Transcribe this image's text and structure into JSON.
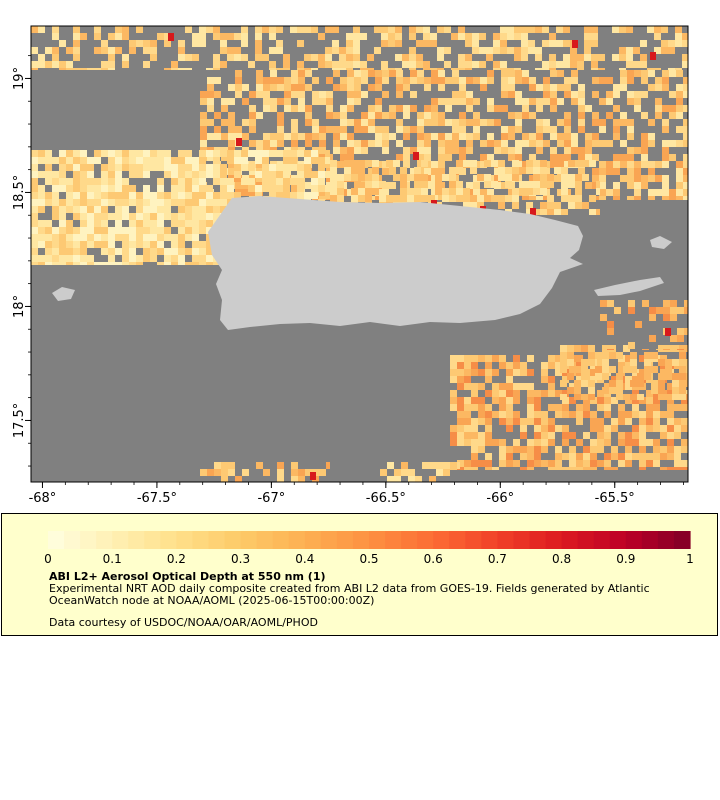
{
  "map": {
    "land_color": "#cccccc",
    "nodata_color": "#808080",
    "extent": {
      "lon": [
        -68.05,
        -65.18
      ],
      "lat": [
        17.23,
        19.23
      ]
    },
    "lon_ticks": [
      {
        "value": -68,
        "label": "-68°"
      },
      {
        "value": -67.5,
        "label": "-67.5°"
      },
      {
        "value": -67,
        "label": "-67°"
      },
      {
        "value": -66.5,
        "label": "-66.5°"
      },
      {
        "value": -66,
        "label": "-66°"
      },
      {
        "value": -65.5,
        "label": "-65.5°"
      }
    ],
    "lat_ticks": [
      {
        "value": 19,
        "label": "19°"
      },
      {
        "value": 18.5,
        "label": "18.5°"
      },
      {
        "value": 18,
        "label": "18°"
      },
      {
        "value": 17.5,
        "label": "17.5°"
      }
    ]
  },
  "legend": {
    "ticks": [
      "0",
      "0.1",
      "0.2",
      "0.3",
      "0.4",
      "0.5",
      "0.6",
      "0.7",
      "0.8",
      "0.9",
      "1"
    ],
    "colors": [
      "#ffffe0",
      "#fff0b4",
      "#ffe08a",
      "#fdca68",
      "#fdb052",
      "#fd9142",
      "#fc6c34",
      "#f04028",
      "#dc1a20",
      "#bd0026",
      "#800026"
    ],
    "title": "ABI L2+ Aerosol Optical Depth at 550 nm (1)",
    "description": "Experimental NRT AOD daily composite created from ABI L2 data from GOES-19. Fields generated by Atlantic OceanWatch node at NOAA/AOML (2025-06-15T00:00:00Z)",
    "credit": "Data courtesy of USDOC/NOAA/OAR/AOML/PHOD"
  }
}
